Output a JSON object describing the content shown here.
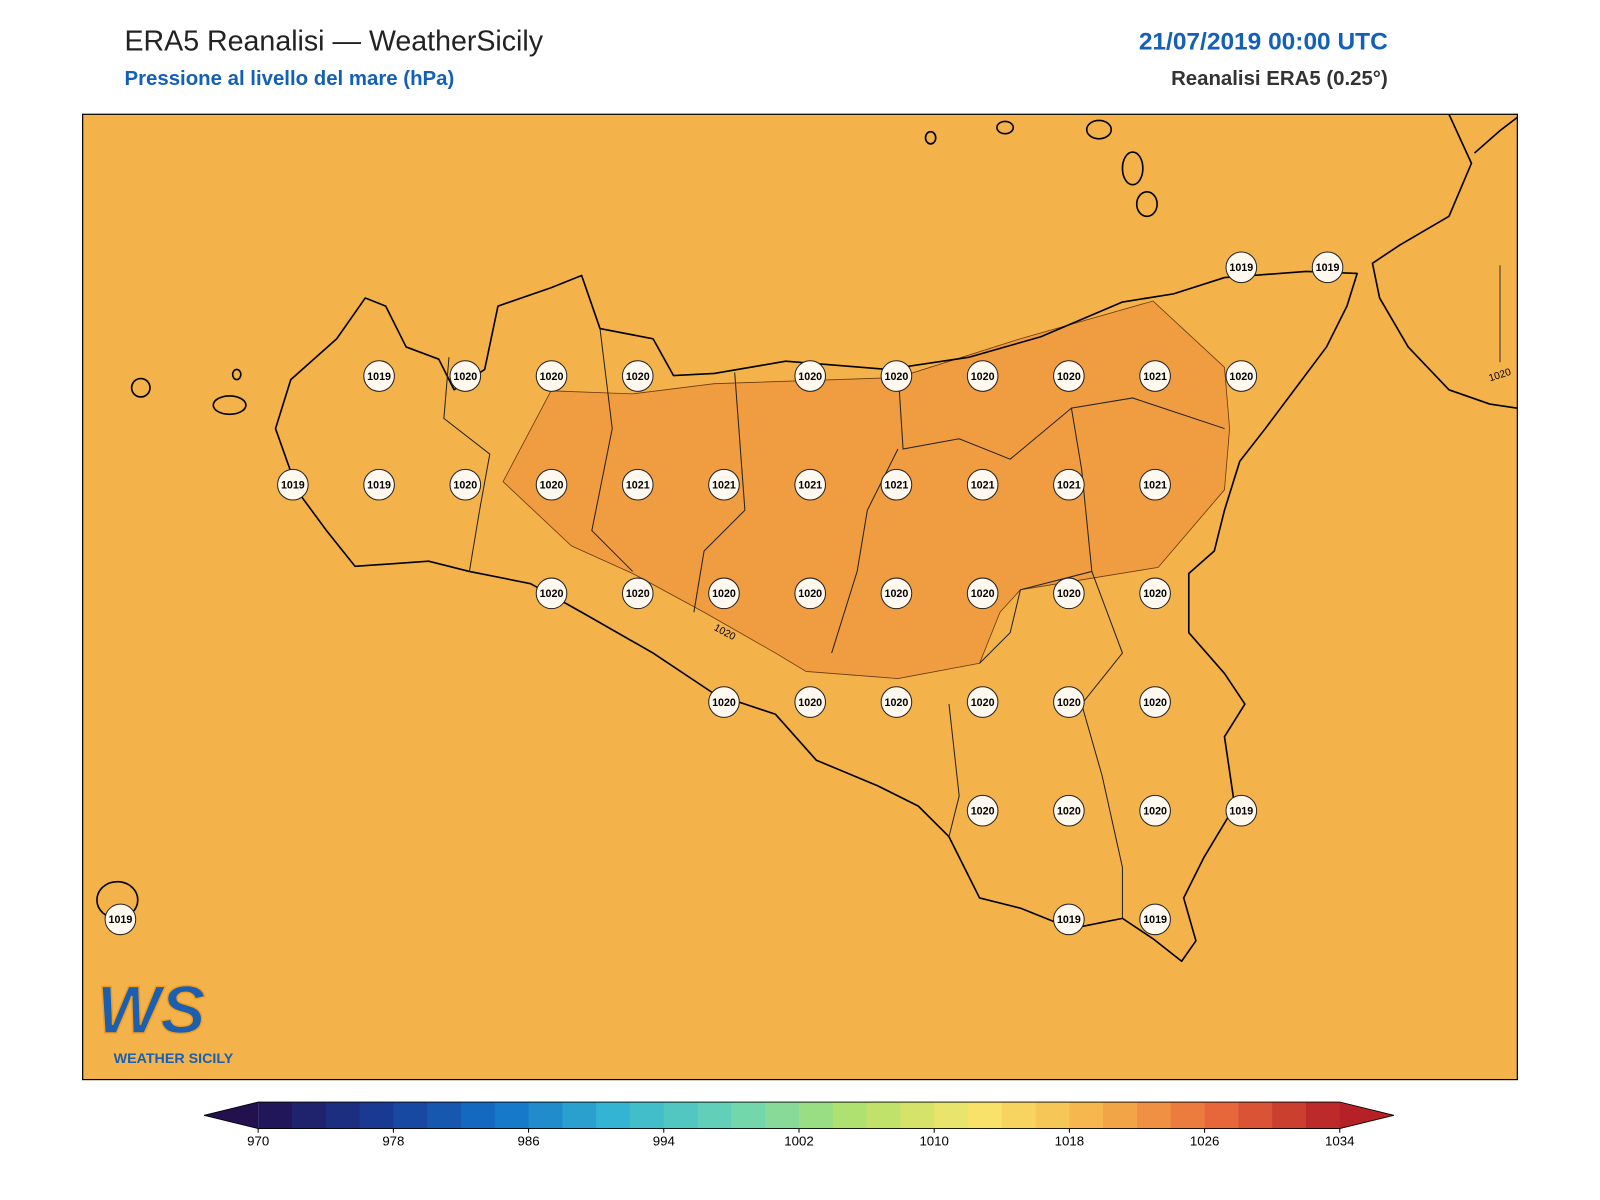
{
  "header": {
    "title": "ERA5 Reanalisi — WeatherSicily",
    "subtitle": "Pressione al livello del mare (hPa)",
    "datetime": "21/07/2019 00:00 UTC",
    "source": "Reanalisi ERA5 (0.25°)"
  },
  "map": {
    "background_color": "#f4b24a",
    "high_area_color": "#f09c40",
    "stations": [
      [
        null,
        null,
        null,
        null,
        null,
        null,
        null,
        null,
        null,
        null,
        null,
        null,
        null,
        1019,
        1019
      ],
      [
        null,
        null,
        null,
        1019,
        1020,
        1020,
        1020,
        null,
        1020,
        1020,
        1020,
        1020,
        1021,
        1020,
        null
      ],
      [
        null,
        null,
        1019,
        1019,
        1020,
        1020,
        1021,
        1021,
        1021,
        1021,
        1021,
        1021,
        1021,
        null,
        null
      ],
      [
        null,
        null,
        null,
        null,
        null,
        1020,
        1020,
        1020,
        1020,
        1020,
        1020,
        1020,
        1020,
        null,
        null
      ],
      [
        null,
        null,
        null,
        null,
        null,
        null,
        null,
        1020,
        1020,
        1020,
        1020,
        1020,
        1020,
        null,
        null
      ],
      [
        null,
        null,
        null,
        null,
        null,
        null,
        null,
        null,
        null,
        null,
        1020,
        1020,
        1020,
        1019,
        null
      ],
      [
        1019,
        null,
        null,
        null,
        null,
        null,
        null,
        null,
        null,
        null,
        null,
        1019,
        1019,
        null,
        null
      ]
    ],
    "contour_labels": [
      1020,
      1020
    ]
  },
  "logo": {
    "mark": "WS",
    "name": "WEATHER SICILY"
  },
  "colorbar": {
    "ticks": [
      970,
      978,
      986,
      994,
      1002,
      1010,
      1018,
      1026,
      1034
    ],
    "colors": [
      "#22104f",
      "#1a3a94",
      "#1271c8",
      "#35b7d3",
      "#6ed6b2",
      "#b3e26a",
      "#f9e46b",
      "#f4b24a",
      "#e8683a",
      "#b52126"
    ]
  }
}
